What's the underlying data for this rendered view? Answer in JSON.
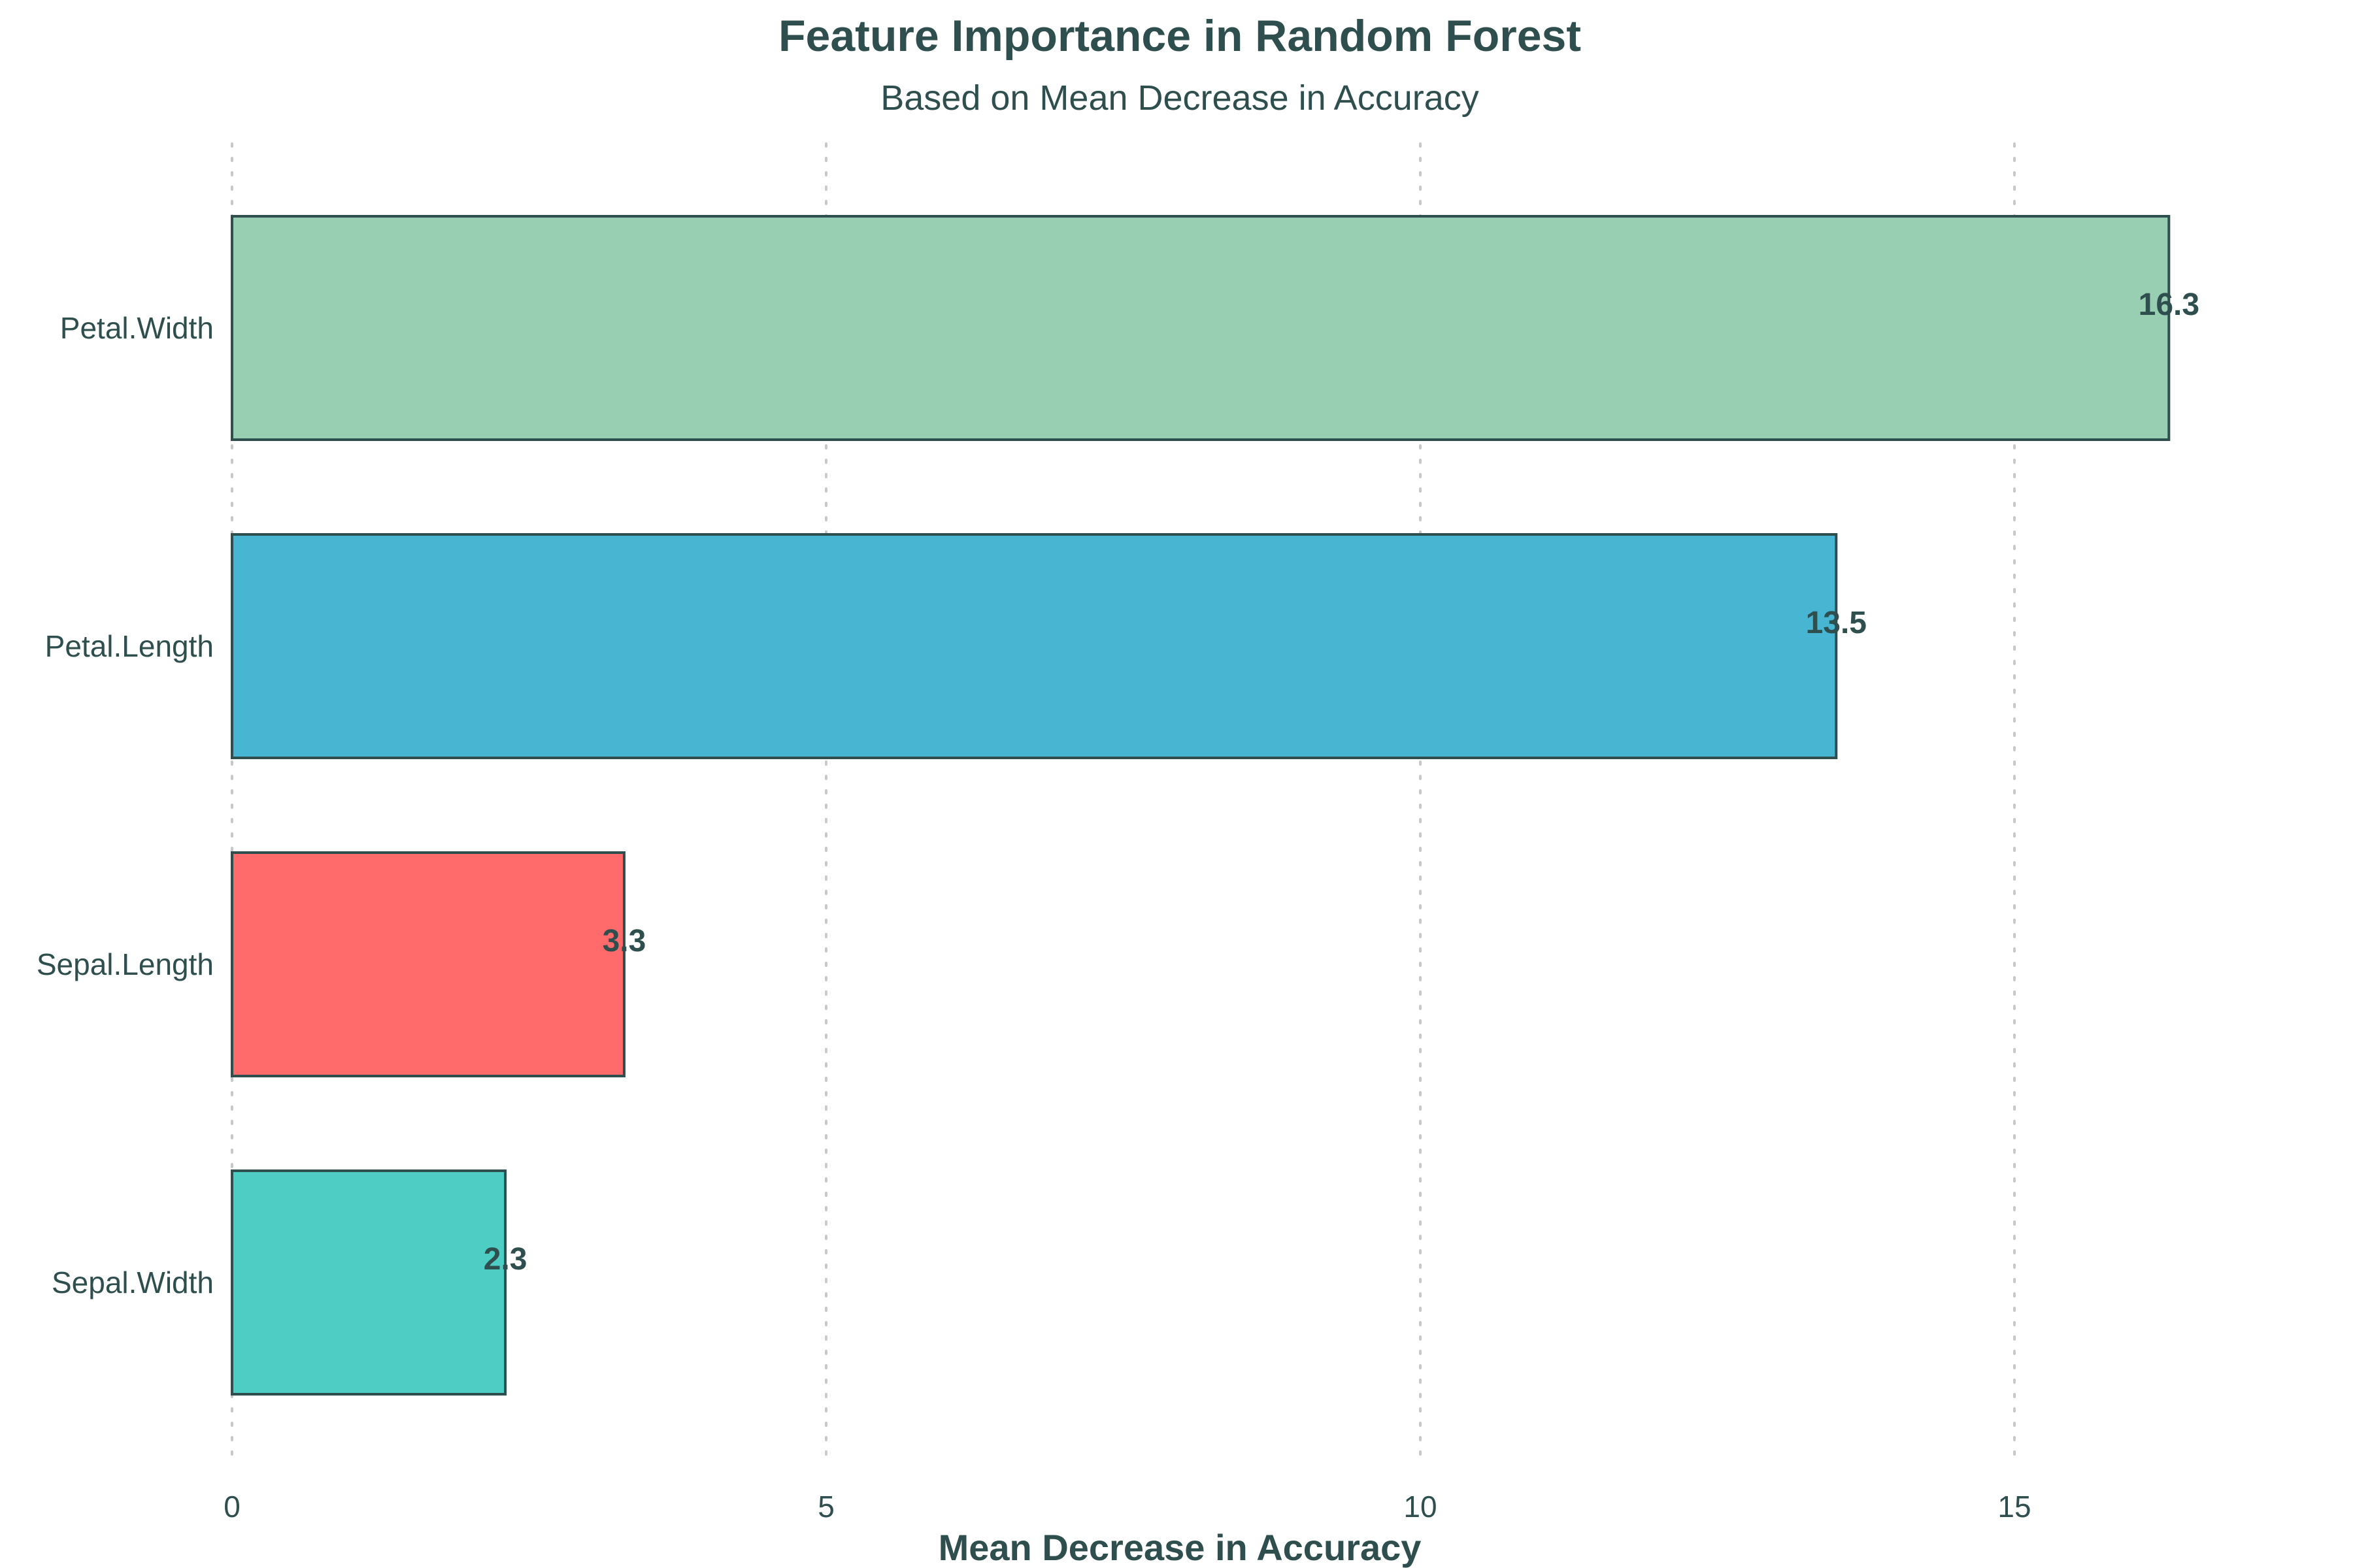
{
  "chart_data": {
    "type": "bar",
    "orientation": "horizontal",
    "title": "Feature Importance in Random Forest",
    "subtitle": "Based on Mean Decrease in Accuracy",
    "xlabel": "Mean Decrease in Accuracy",
    "ylabel": "",
    "xlim": [
      0,
      18
    ],
    "x_ticks": [
      0,
      5,
      10,
      15
    ],
    "x_tick_labels": [
      "0",
      "5",
      "10",
      "15"
    ],
    "grid": "vertical dotted",
    "legend": "none",
    "categories": [
      "Petal.Width",
      "Petal.Length",
      "Sepal.Length",
      "Sepal.Width"
    ],
    "values": [
      16.3,
      13.5,
      3.3,
      2.3
    ],
    "value_labels": [
      "16.3",
      "13.5",
      "3.3",
      "2.3"
    ],
    "colors": [
      "#98CEB2",
      "#48B5D2",
      "#FF6B6B",
      "#4ECDC4"
    ],
    "edge_color": "#2F4F4F"
  }
}
